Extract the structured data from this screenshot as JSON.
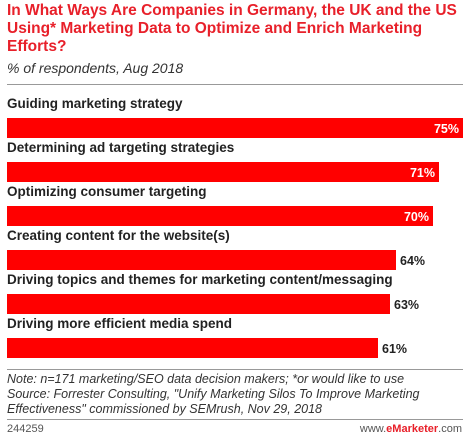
{
  "header": {
    "title": "In What Ways Are Companies in Germany, the UK and the US Using* Marketing Data to Optimize and Enrich Marketing Efforts?",
    "subtitle": "% of respondents, Aug 2018"
  },
  "chart_data": {
    "type": "bar",
    "orientation": "horizontal",
    "categories": [
      "Guiding marketing strategy",
      "Determining ad targeting strategies",
      "Optimizing consumer targeting",
      "Creating content for the website(s)",
      "Driving topics and themes for marketing content/messaging",
      "Driving more efficient media spend"
    ],
    "values": [
      75,
      71,
      70,
      64,
      63,
      61
    ],
    "value_labels": [
      "75%",
      "71%",
      "70%",
      "64%",
      "63%",
      "61%"
    ],
    "xlim": [
      0,
      75
    ],
    "bar_color": "#ff0000",
    "grid": false
  },
  "footer": {
    "note": "Note: n=171 marketing/SEO data decision makers; *or would like to use",
    "source": "Source: Forrester Consulting, \"Unify Marketing Silos To Improve Marketing Effectiveness\" commissioned by SEMrush, Nov 29, 2018",
    "id": "244259",
    "brand_www": "www.",
    "brand_name": "eMarketer",
    "brand_tld": ".com"
  }
}
